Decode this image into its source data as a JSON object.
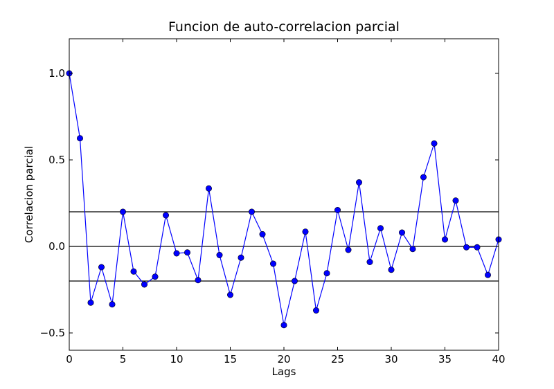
{
  "chart_data": {
    "type": "line",
    "title": "Funcion de auto-correlacion parcial",
    "xlabel": "Lags",
    "ylabel": "Correlacion parcial",
    "xlim": [
      0,
      40
    ],
    "ylim": [
      -0.6,
      1.2
    ],
    "xticks": [
      0,
      5,
      10,
      15,
      20,
      25,
      30,
      35,
      40
    ],
    "xtick_labels": [
      "0",
      "5",
      "10",
      "15",
      "20",
      "25",
      "30",
      "35",
      "40"
    ],
    "yticks": [
      -0.5,
      0.0,
      0.5,
      1.0
    ],
    "ytick_labels": [
      "−0.5",
      "0.0",
      "0.5",
      "1.0"
    ],
    "grid": false,
    "reference_lines": [
      0.2,
      0.0,
      -0.2
    ],
    "series": [
      {
        "color": "#0000ff",
        "marker": "circle",
        "x": [
          0,
          1,
          2,
          3,
          4,
          5,
          6,
          7,
          8,
          9,
          10,
          11,
          12,
          13,
          14,
          15,
          16,
          17,
          18,
          19,
          20,
          21,
          22,
          23,
          24,
          25,
          26,
          27,
          28,
          29,
          30,
          31,
          32,
          33,
          34,
          35,
          36,
          37,
          38,
          39,
          40
        ],
        "y": [
          1.0,
          0.625,
          -0.325,
          -0.12,
          -0.335,
          0.2,
          -0.145,
          -0.22,
          -0.175,
          0.18,
          -0.04,
          -0.035,
          -0.195,
          0.335,
          -0.05,
          -0.28,
          -0.065,
          0.2,
          0.07,
          -0.1,
          -0.455,
          -0.2,
          0.085,
          -0.37,
          -0.155,
          0.21,
          -0.02,
          0.37,
          -0.09,
          0.105,
          -0.135,
          0.08,
          -0.015,
          0.4,
          0.595,
          0.04,
          0.265,
          -0.005,
          -0.005,
          -0.165,
          0.04
        ]
      }
    ]
  }
}
